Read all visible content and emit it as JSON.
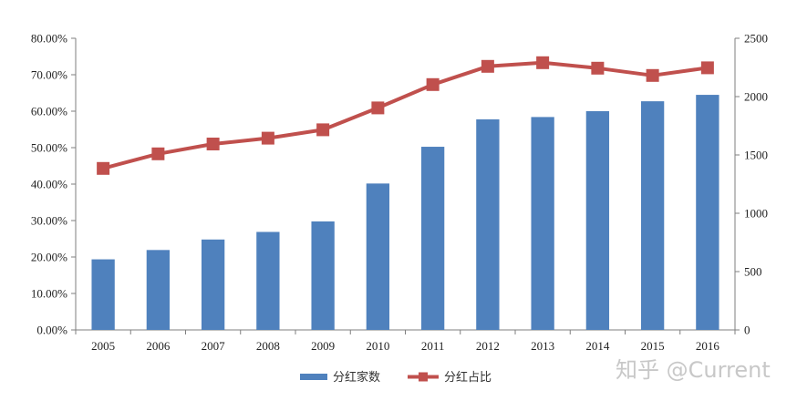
{
  "chart_data": {
    "type": "bar+line",
    "categories": [
      "2005",
      "2006",
      "2007",
      "2008",
      "2009",
      "2010",
      "2011",
      "2012",
      "2013",
      "2014",
      "2015",
      "2016"
    ],
    "series": [
      {
        "name": "分红家数",
        "type": "bar",
        "axis": "right",
        "color": "#4f81bd",
        "values": [
          605,
          685,
          775,
          840,
          930,
          1255,
          1570,
          1805,
          1825,
          1875,
          1960,
          2015
        ]
      },
      {
        "name": "分红占比",
        "type": "line",
        "axis": "left",
        "color": "#c0504d",
        "marker": "square",
        "values": [
          44.3,
          48.3,
          51.0,
          52.6,
          54.9,
          60.9,
          67.3,
          72.3,
          73.3,
          71.8,
          69.8,
          71.9
        ]
      }
    ],
    "y_left": {
      "ticks": [
        "0.00%",
        "10.00%",
        "20.00%",
        "30.00%",
        "40.00%",
        "50.00%",
        "60.00%",
        "70.00%",
        "80.00%"
      ],
      "range": [
        0,
        80
      ]
    },
    "y_right": {
      "ticks": [
        "0",
        "500",
        "1000",
        "1500",
        "2000",
        "2500"
      ],
      "range": [
        0,
        2500
      ]
    },
    "grid": false,
    "legend_position": "bottom"
  },
  "watermark": "知乎 @Current"
}
